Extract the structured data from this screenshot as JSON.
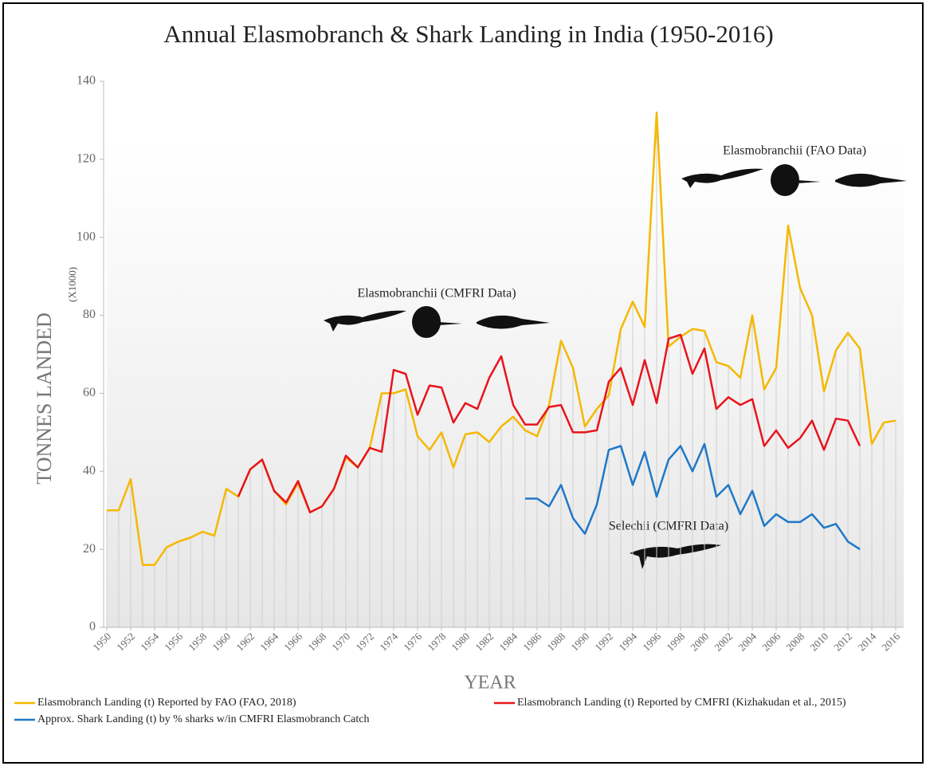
{
  "chart_data": {
    "type": "line",
    "title": "Annual Elasmobranch & Shark Landing in India (1950-2016)",
    "y_label": "TONNES LANDED",
    "y_unit_label": "(X1000)",
    "x_label": "YEAR",
    "annotations": [
      "Elasmobranchii (FAO Data)",
      "Elasmobranchii (CMFRI Data)",
      "Selechii (CMFRI Data)"
    ],
    "x": [
      1950,
      1951,
      1952,
      1953,
      1954,
      1955,
      1956,
      1957,
      1958,
      1959,
      1960,
      1961,
      1962,
      1963,
      1964,
      1965,
      1966,
      1967,
      1968,
      1969,
      1970,
      1971,
      1972,
      1973,
      1974,
      1975,
      1976,
      1977,
      1978,
      1979,
      1980,
      1981,
      1982,
      1983,
      1984,
      1985,
      1986,
      1987,
      1988,
      1989,
      1990,
      1991,
      1992,
      1993,
      1994,
      1995,
      1996,
      1997,
      1998,
      1999,
      2000,
      2001,
      2002,
      2003,
      2004,
      2005,
      2006,
      2007,
      2008,
      2009,
      2010,
      2011,
      2012,
      2013,
      2014,
      2015,
      2016
    ],
    "series": [
      {
        "name": "Elasmobranch Landing (t) Reported by FAO (FAO, 2018)",
        "color": "#f5b800",
        "values": [
          30,
          30,
          38,
          16,
          16,
          20.5,
          22,
          23,
          24.5,
          23.5,
          35.5,
          33.5,
          40.5,
          43,
          35,
          31.5,
          37,
          29.5,
          31,
          35.5,
          43.5,
          41,
          46,
          60,
          60,
          61,
          49,
          45.5,
          50,
          41,
          49.5,
          50,
          47.5,
          51.5,
          54,
          50.5,
          49,
          57,
          73.5,
          66.5,
          51.5,
          56,
          59.5,
          76.5,
          83.5,
          77,
          132,
          72,
          74.5,
          76.5,
          76,
          68,
          67,
          64,
          80,
          61,
          66.5,
          103,
          87,
          80,
          60.5,
          71,
          75.5,
          71.5,
          47,
          52.5,
          53
        ]
      },
      {
        "name": "Elasmobranch Landing (t) Reported by CMFRI (Kizhakudan et al., 2015)",
        "color": "#e8141c",
        "values": [
          null,
          null,
          null,
          null,
          null,
          null,
          null,
          null,
          null,
          null,
          null,
          33.5,
          40.5,
          43,
          35,
          32,
          37.5,
          29.5,
          31,
          35.5,
          44,
          41,
          46,
          45,
          66,
          65,
          54.5,
          62,
          61.5,
          52.5,
          57.5,
          56,
          64,
          69.5,
          57,
          52,
          52,
          56.5,
          57,
          50,
          50,
          50.5,
          63,
          66.5,
          57,
          68.5,
          57.5,
          74,
          75,
          65,
          71.5,
          56,
          59,
          57,
          58.5,
          46.5,
          50.5,
          46,
          48.5,
          53,
          45.5,
          53.5,
          53,
          46.5,
          null,
          null,
          null
        ]
      },
      {
        "name": "Approx. Shark Landing (t) by % sharks w/in CMFRI Elasmobranch Catch",
        "color": "#1f78c8",
        "values": [
          null,
          null,
          null,
          null,
          null,
          null,
          null,
          null,
          null,
          null,
          null,
          null,
          null,
          null,
          null,
          null,
          null,
          null,
          null,
          null,
          null,
          null,
          null,
          null,
          null,
          null,
          null,
          null,
          null,
          null,
          null,
          null,
          null,
          null,
          null,
          33,
          33,
          31,
          36.5,
          28,
          24,
          31.5,
          45.5,
          46.5,
          36.5,
          45,
          33.5,
          43,
          46.5,
          40,
          47,
          33.5,
          36.5,
          29,
          35,
          26,
          29,
          27,
          27,
          29,
          25.5,
          26.5,
          22,
          20,
          null,
          null,
          null
        ]
      }
    ],
    "xlim": [
      1950,
      2016
    ],
    "xticks": [
      1950,
      1952,
      1954,
      1956,
      1958,
      1960,
      1962,
      1964,
      1966,
      1968,
      1970,
      1972,
      1974,
      1976,
      1978,
      1980,
      1982,
      1984,
      1986,
      1988,
      1990,
      1992,
      1994,
      1996,
      1998,
      2000,
      2002,
      2004,
      2006,
      2008,
      2010,
      2012,
      2014,
      2016
    ],
    "ylim": [
      0,
      140
    ],
    "yticks": [
      0,
      20,
      40,
      60,
      80,
      100,
      120,
      140
    ],
    "drop_lines": true
  }
}
